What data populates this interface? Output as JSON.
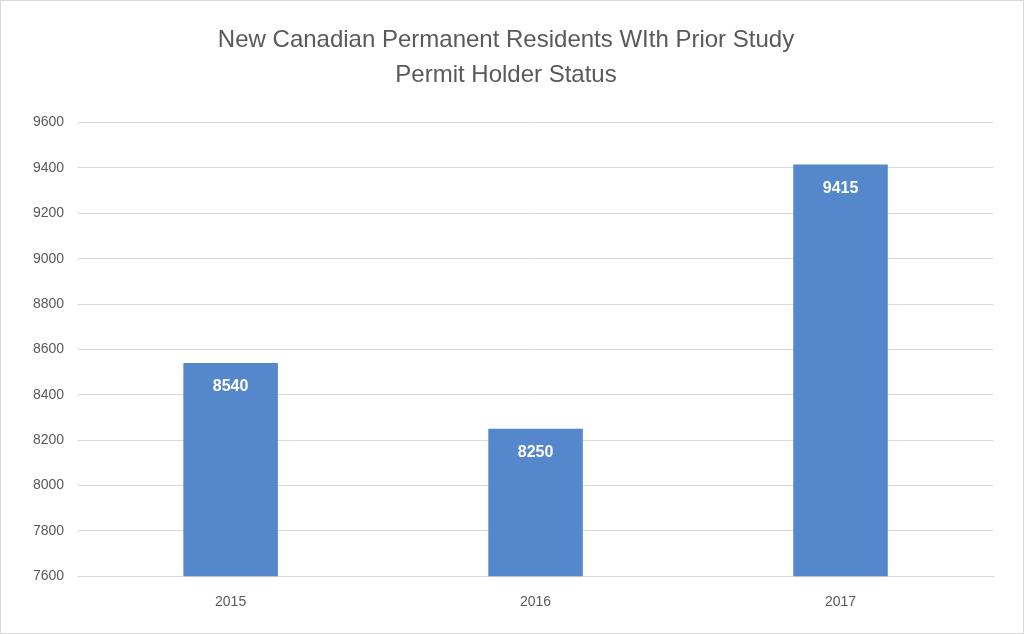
{
  "chart_data": {
    "type": "bar",
    "title": "New Canadian Permanent Residents WIth Prior Study Permit Holder Status",
    "categories": [
      "2015",
      "2016",
      "2017"
    ],
    "values": [
      8540,
      8250,
      9415
    ],
    "color": "#5587cc",
    "ylim": [
      7600,
      9600
    ],
    "yticks": [
      7600,
      7800,
      8000,
      8200,
      8400,
      8600,
      8800,
      9000,
      9200,
      9400,
      9600
    ],
    "grid": true,
    "data_labels": true
  }
}
